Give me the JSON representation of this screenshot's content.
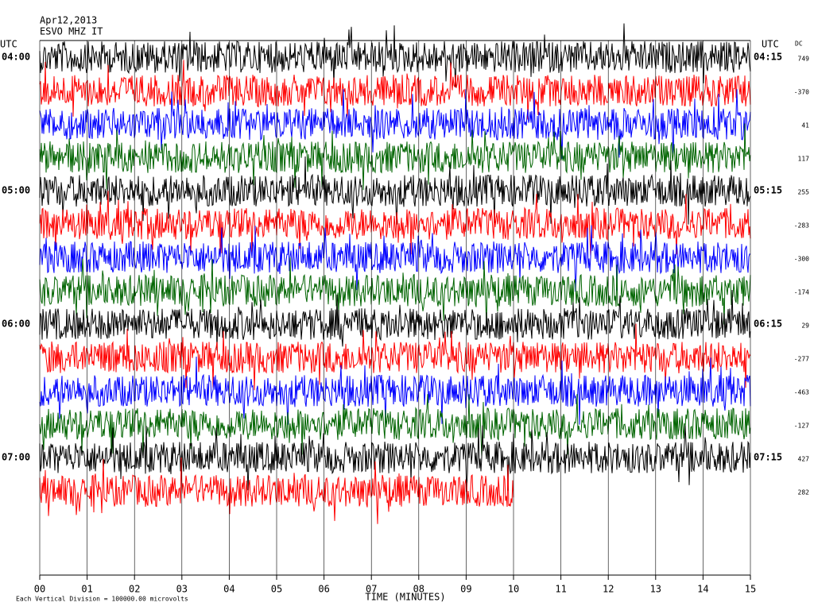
{
  "chart_data": {
    "type": "helicorder",
    "date": "Apr12,2013",
    "station": "ESVO MHZ IT",
    "left_timezone": "UTC",
    "right_timezone": "UTC",
    "dc_header": "DC",
    "x_label": "TIME (MINUTES)",
    "footnote": "Each Vertical Division = 100000.00 microvolts",
    "xlim": [
      0,
      15
    ],
    "xticks": [
      {
        "value": 0,
        "label": "00"
      },
      {
        "value": 1,
        "label": "01"
      },
      {
        "value": 2,
        "label": "02"
      },
      {
        "value": 3,
        "label": "03"
      },
      {
        "value": 4,
        "label": "04"
      },
      {
        "value": 5,
        "label": "05"
      },
      {
        "value": 6,
        "label": "06"
      },
      {
        "value": 7,
        "label": "07"
      },
      {
        "value": 8,
        "label": "08"
      },
      {
        "value": 9,
        "label": "09"
      },
      {
        "value": 10,
        "label": "10"
      },
      {
        "value": 11,
        "label": "11"
      },
      {
        "value": 12,
        "label": "12"
      },
      {
        "value": 13,
        "label": "13"
      },
      {
        "value": 14,
        "label": "14"
      },
      {
        "value": 15,
        "label": "15"
      }
    ],
    "grid": true,
    "colors": [
      "#000000",
      "#ff0000",
      "#0000ff",
      "#006400"
    ],
    "rows": [
      {
        "dc": 749,
        "left": "04:00",
        "right": "04:15"
      },
      {
        "dc": -370
      },
      {
        "dc": 41
      },
      {
        "dc": 117
      },
      {
        "dc": 255,
        "left": "05:00",
        "right": "05:15"
      },
      {
        "dc": -283
      },
      {
        "dc": -300
      },
      {
        "dc": -174
      },
      {
        "dc": 29,
        "left": "06:00",
        "right": "06:15"
      },
      {
        "dc": -277
      },
      {
        "dc": -463
      },
      {
        "dc": -127
      },
      {
        "dc": 427,
        "left": "07:00",
        "right": "07:15"
      },
      {
        "dc": 282,
        "end": 10
      }
    ]
  }
}
